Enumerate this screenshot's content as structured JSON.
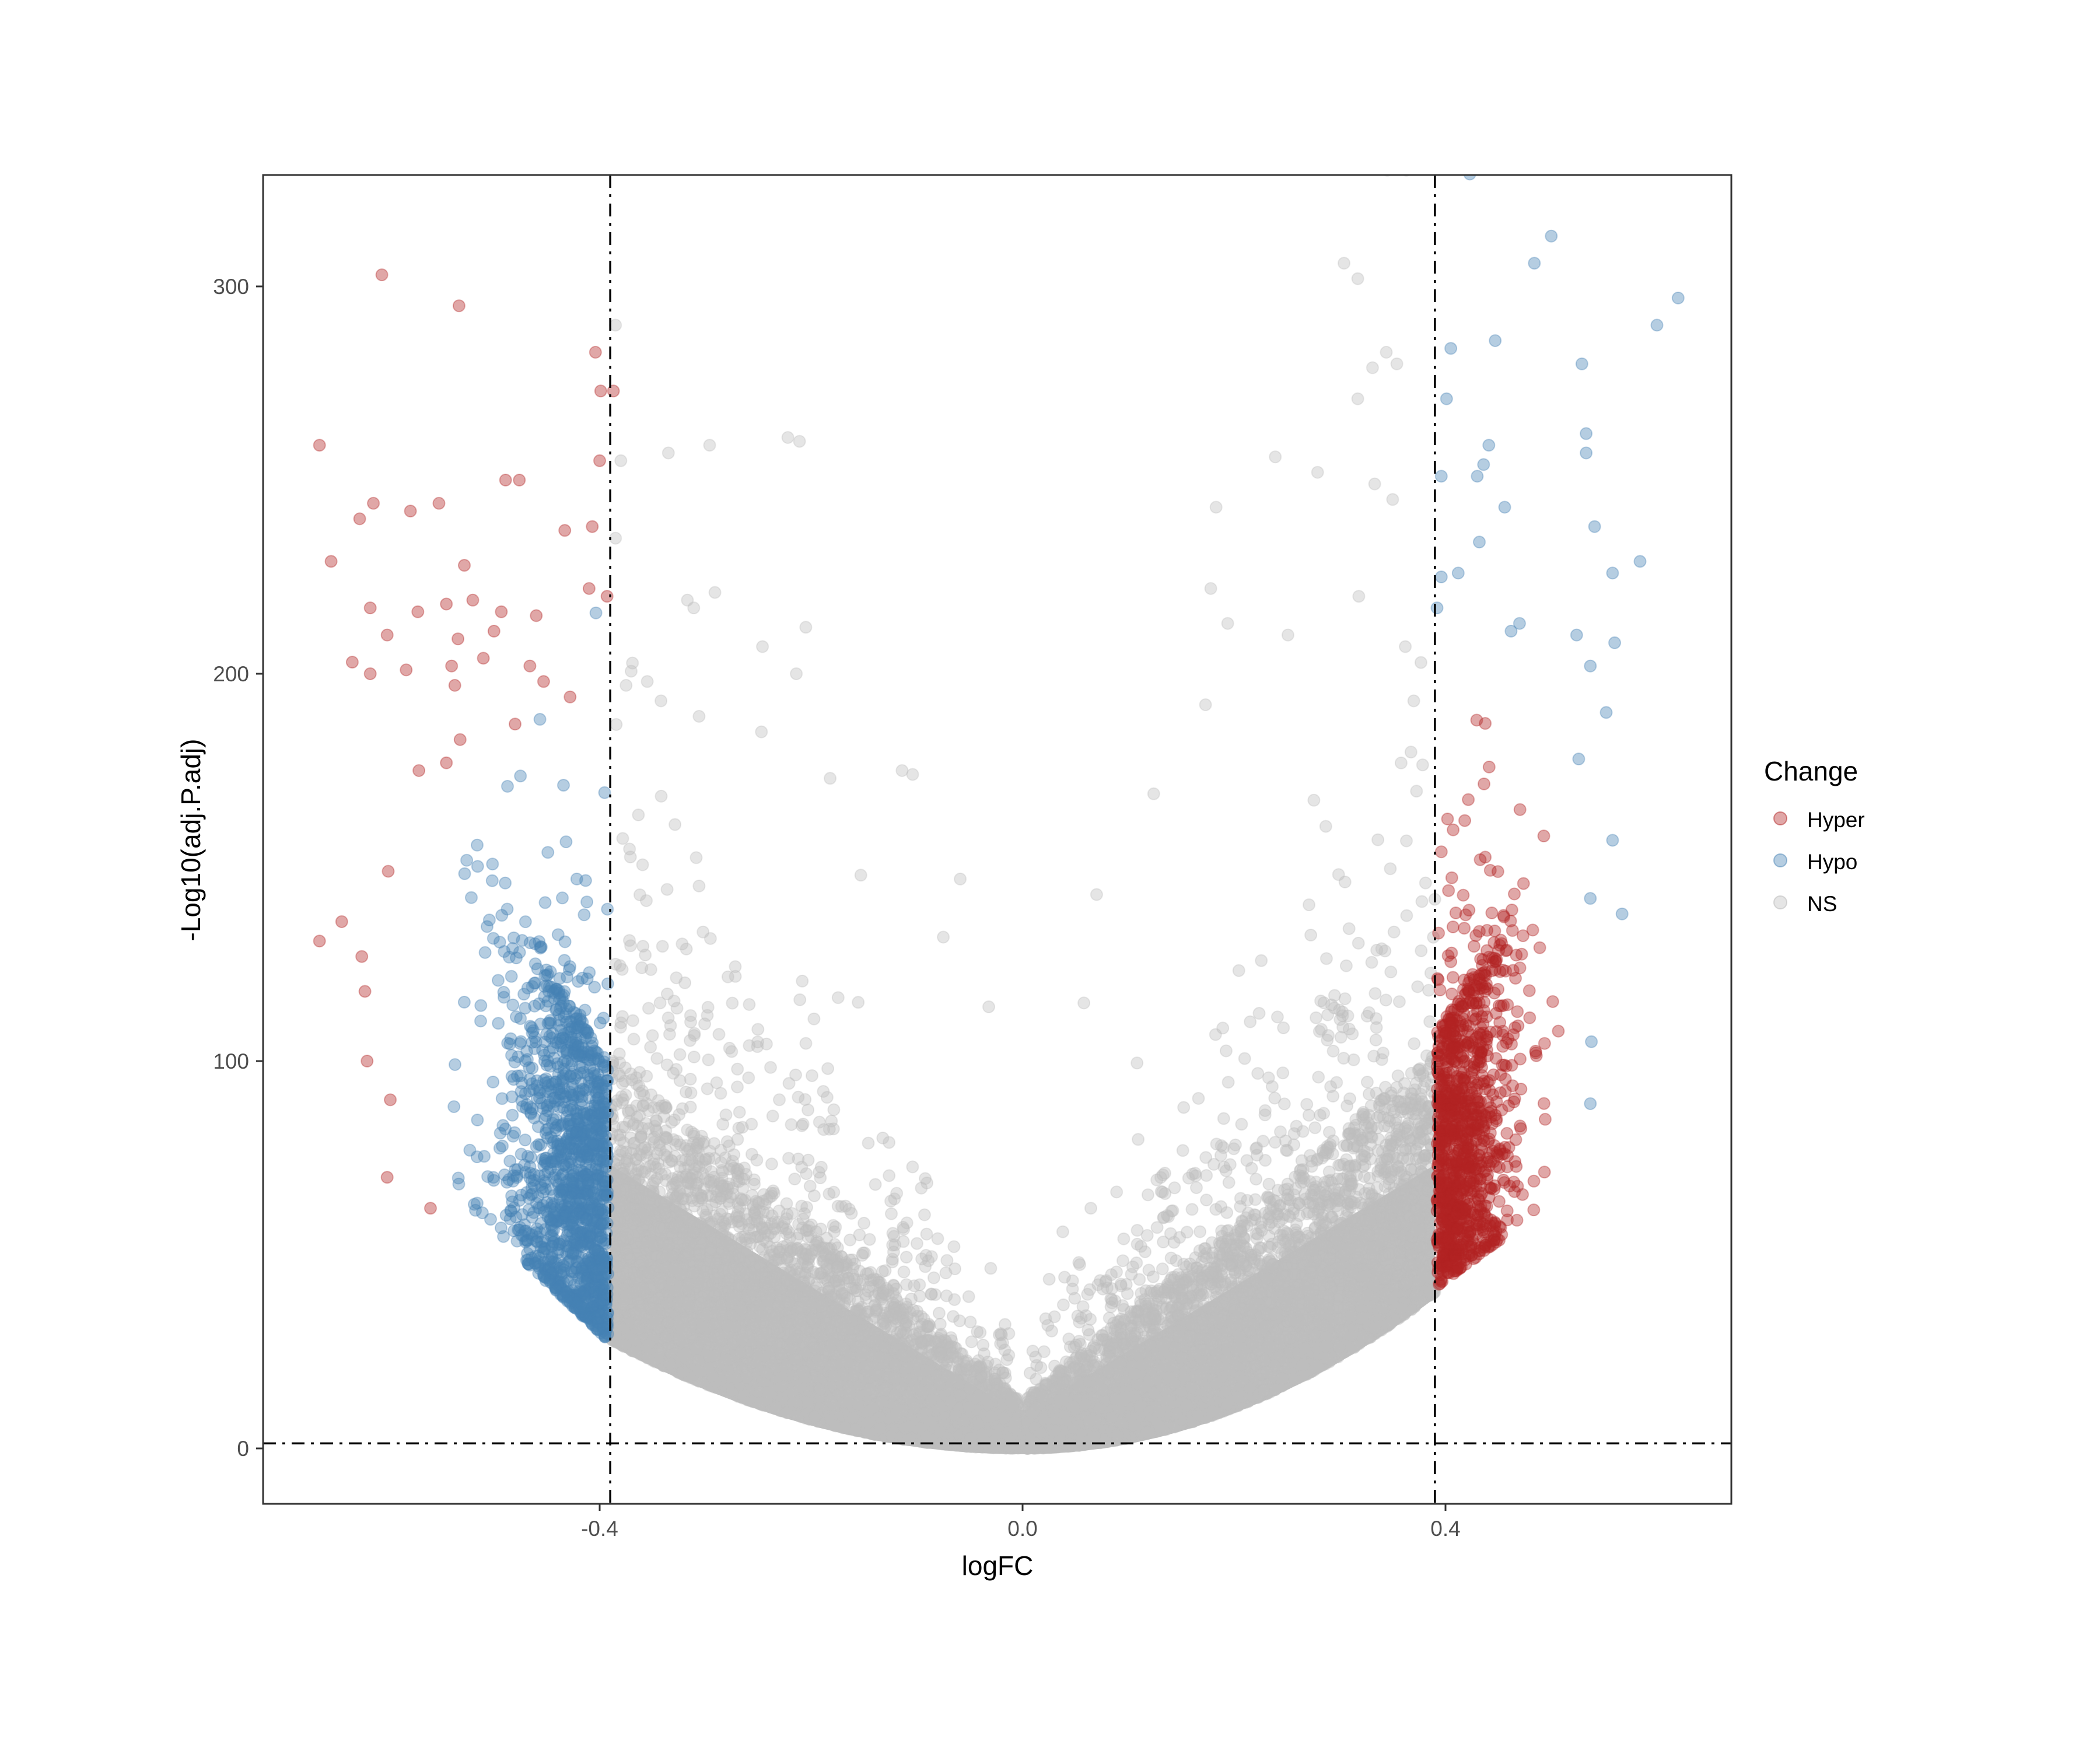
{
  "chart_data": {
    "type": "scatter",
    "subtype": "volcano",
    "title": "",
    "xlabel": "logFC",
    "ylabel": "-Log10(adj.P.adj)",
    "xlim": [
      -0.718,
      0.67
    ],
    "ylim": [
      -14.3,
      328.8
    ],
    "x_ticks": [
      {
        "value": -0.4,
        "label": "-0.4"
      },
      {
        "value": 0.0,
        "label": "0.0"
      },
      {
        "value": 0.4,
        "label": "0.4"
      }
    ],
    "y_ticks": [
      {
        "value": 0,
        "label": "0"
      },
      {
        "value": 100,
        "label": "100"
      },
      {
        "value": 200,
        "label": "200"
      },
      {
        "value": 300,
        "label": "300"
      }
    ],
    "grid": false,
    "reference_lines": {
      "vertical": [
        -0.39,
        0.39
      ],
      "horizontal": [
        1.3
      ],
      "style": "dotdash",
      "color": "#000000"
    },
    "legend": {
      "title": "Change",
      "position": "right",
      "entries": [
        {
          "label": "Hyper",
          "color": "#B22222"
        },
        {
          "label": "Hypo",
          "color": "#4682B4"
        },
        {
          "label": "NS",
          "color": "#BEBEBE"
        }
      ]
    },
    "point_alpha": 0.4,
    "point_radius_px": 10,
    "series": [
      {
        "name": "Hypo",
        "color": "#4682B4",
        "description": "logFC < -0.39; dense cluster at logFC -0.50 to -0.39, y 30-110; sparse outliers up to y~303",
        "outliers": [
          {
            "x": -0.606,
            "y": 303
          },
          {
            "x": -0.533,
            "y": 295
          },
          {
            "x": -0.404,
            "y": 283
          },
          {
            "x": -0.399,
            "y": 273
          },
          {
            "x": -0.387,
            "y": 273
          },
          {
            "x": -0.665,
            "y": 259
          },
          {
            "x": -0.4,
            "y": 255
          },
          {
            "x": -0.489,
            "y": 250
          },
          {
            "x": -0.476,
            "y": 250
          },
          {
            "x": -0.614,
            "y": 244
          },
          {
            "x": -0.552,
            "y": 244
          },
          {
            "x": -0.627,
            "y": 240
          },
          {
            "x": -0.579,
            "y": 242
          },
          {
            "x": -0.433,
            "y": 237
          },
          {
            "x": -0.407,
            "y": 238
          },
          {
            "x": -0.654,
            "y": 229
          },
          {
            "x": -0.528,
            "y": 228
          },
          {
            "x": -0.41,
            "y": 222
          },
          {
            "x": -0.393,
            "y": 220
          },
          {
            "x": -0.617,
            "y": 217
          },
          {
            "x": -0.572,
            "y": 216
          },
          {
            "x": -0.545,
            "y": 218
          },
          {
            "x": -0.52,
            "y": 219
          },
          {
            "x": -0.493,
            "y": 216
          },
          {
            "x": -0.46,
            "y": 215
          },
          {
            "x": -0.601,
            "y": 210
          },
          {
            "x": -0.534,
            "y": 209
          },
          {
            "x": -0.5,
            "y": 211
          },
          {
            "x": -0.634,
            "y": 203
          },
          {
            "x": -0.583,
            "y": 201
          },
          {
            "x": -0.617,
            "y": 200
          },
          {
            "x": -0.54,
            "y": 202
          },
          {
            "x": -0.51,
            "y": 204
          },
          {
            "x": -0.466,
            "y": 202
          },
          {
            "x": -0.453,
            "y": 198
          },
          {
            "x": -0.537,
            "y": 197
          },
          {
            "x": -0.428,
            "y": 194
          },
          {
            "x": -0.48,
            "y": 187
          },
          {
            "x": -0.532,
            "y": 183
          },
          {
            "x": -0.571,
            "y": 175
          },
          {
            "x": -0.545,
            "y": 177
          },
          {
            "x": -0.6,
            "y": 149
          },
          {
            "x": -0.665,
            "y": 131
          },
          {
            "x": -0.644,
            "y": 136
          },
          {
            "x": -0.625,
            "y": 127
          },
          {
            "x": -0.622,
            "y": 118
          },
          {
            "x": -0.62,
            "y": 100
          },
          {
            "x": -0.598,
            "y": 90
          },
          {
            "x": -0.601,
            "y": 70
          },
          {
            "x": -0.56,
            "y": 62
          }
        ]
      },
      {
        "name": "Hyper",
        "color": "#B22222",
        "description": "logFC > 0.39; dense cluster at logFC 0.39 to 0.48, y 40-120; sparse outliers up to y~330",
        "outliers": [
          {
            "x": 0.423,
            "y": 329
          },
          {
            "x": 0.5,
            "y": 313
          },
          {
            "x": 0.484,
            "y": 306
          },
          {
            "x": 0.62,
            "y": 297
          },
          {
            "x": 0.6,
            "y": 290
          },
          {
            "x": 0.447,
            "y": 286
          },
          {
            "x": 0.405,
            "y": 284
          },
          {
            "x": 0.529,
            "y": 280
          },
          {
            "x": 0.401,
            "y": 271
          },
          {
            "x": 0.533,
            "y": 262
          },
          {
            "x": 0.441,
            "y": 259
          },
          {
            "x": 0.533,
            "y": 257
          },
          {
            "x": 0.436,
            "y": 254
          },
          {
            "x": 0.43,
            "y": 251
          },
          {
            "x": 0.396,
            "y": 251
          },
          {
            "x": 0.456,
            "y": 243
          },
          {
            "x": 0.541,
            "y": 238
          },
          {
            "x": 0.558,
            "y": 226
          },
          {
            "x": 0.584,
            "y": 229
          },
          {
            "x": 0.412,
            "y": 226
          },
          {
            "x": 0.432,
            "y": 234
          },
          {
            "x": 0.396,
            "y": 225
          },
          {
            "x": 0.392,
            "y": 217
          },
          {
            "x": 0.47,
            "y": 213
          },
          {
            "x": 0.462,
            "y": 211
          },
          {
            "x": 0.524,
            "y": 210
          },
          {
            "x": 0.56,
            "y": 208
          },
          {
            "x": 0.537,
            "y": 202
          },
          {
            "x": 0.552,
            "y": 190
          },
          {
            "x": 0.526,
            "y": 178
          },
          {
            "x": 0.558,
            "y": 157
          },
          {
            "x": 0.567,
            "y": 138
          },
          {
            "x": 0.537,
            "y": 142
          },
          {
            "x": 0.538,
            "y": 105
          },
          {
            "x": 0.537,
            "y": 89
          }
        ]
      },
      {
        "name": "NS",
        "color": "#BEBEBE",
        "description": "|logFC| <= 0.39; dense V/U-shaped cloud with floor rising from y~0 at logFC 0 to y~28 at -0.39 and y~40 at 0.39; bulk top ~100 near thresholds, sparse points up to y~330",
        "outliers": [
          {
            "x": -0.385,
            "y": 290
          },
          {
            "x": -0.38,
            "y": 255
          },
          {
            "x": -0.385,
            "y": 235
          },
          {
            "x": -0.335,
            "y": 257
          },
          {
            "x": -0.296,
            "y": 259
          },
          {
            "x": -0.222,
            "y": 261
          },
          {
            "x": -0.211,
            "y": 260
          },
          {
            "x": -0.317,
            "y": 219
          },
          {
            "x": -0.291,
            "y": 221
          },
          {
            "x": -0.311,
            "y": 217
          },
          {
            "x": -0.205,
            "y": 212
          },
          {
            "x": -0.246,
            "y": 207
          },
          {
            "x": -0.214,
            "y": 200
          },
          {
            "x": -0.375,
            "y": 197
          },
          {
            "x": -0.355,
            "y": 198
          },
          {
            "x": -0.342,
            "y": 193
          },
          {
            "x": -0.306,
            "y": 189
          },
          {
            "x": -0.247,
            "y": 185
          },
          {
            "x": -0.182,
            "y": 173
          },
          {
            "x": -0.114,
            "y": 175
          },
          {
            "x": -0.104,
            "y": 174
          },
          {
            "x": -0.153,
            "y": 148
          },
          {
            "x": -0.059,
            "y": 147
          },
          {
            "x": -0.075,
            "y": 132
          },
          {
            "x": -0.032,
            "y": 114
          },
          {
            "x": 0.363,
            "y": 330
          },
          {
            "x": 0.345,
            "y": 330
          },
          {
            "x": 0.304,
            "y": 306
          },
          {
            "x": 0.317,
            "y": 302
          },
          {
            "x": 0.344,
            "y": 283
          },
          {
            "x": 0.331,
            "y": 279
          },
          {
            "x": 0.354,
            "y": 280
          },
          {
            "x": 0.317,
            "y": 271
          },
          {
            "x": 0.239,
            "y": 256
          },
          {
            "x": 0.279,
            "y": 252
          },
          {
            "x": 0.333,
            "y": 249
          },
          {
            "x": 0.35,
            "y": 245
          },
          {
            "x": 0.183,
            "y": 243
          },
          {
            "x": 0.178,
            "y": 222
          },
          {
            "x": 0.318,
            "y": 220
          },
          {
            "x": 0.194,
            "y": 213
          },
          {
            "x": 0.251,
            "y": 210
          },
          {
            "x": 0.362,
            "y": 207
          },
          {
            "x": 0.37,
            "y": 193
          },
          {
            "x": 0.173,
            "y": 192
          },
          {
            "x": 0.124,
            "y": 169
          },
          {
            "x": 0.07,
            "y": 143
          },
          {
            "x": 0.058,
            "y": 115
          }
        ]
      }
    ]
  },
  "cloud": {
    "seed": 20240611,
    "ns_count": 9000,
    "hypo_count": 1400,
    "hyper_count": 1100
  },
  "colors": {
    "hyper": "#B22222",
    "hypo": "#4682B4",
    "ns": "#BEBEBE",
    "axis": "#333333",
    "tick_text": "#4d4d4d",
    "ref_line": "#000000"
  }
}
